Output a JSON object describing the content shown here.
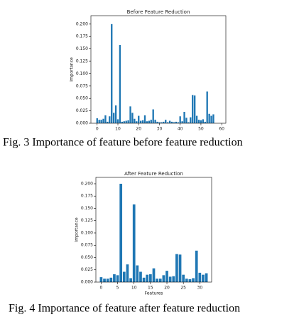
{
  "chart_data": [
    {
      "type": "bar",
      "title": "Before Feature Reduction",
      "ylabel": "Importance",
      "caption": "Fig. 3 Importance of feature before feature reduction",
      "color": "#1f77b4",
      "x": [
        0,
        1,
        2,
        3,
        4,
        5,
        6,
        7,
        8,
        9,
        10,
        11,
        12,
        13,
        14,
        15,
        16,
        17,
        18,
        19,
        20,
        21,
        22,
        23,
        24,
        25,
        26,
        27,
        28,
        29,
        30,
        31,
        32,
        33,
        34,
        35,
        36,
        37,
        38,
        39,
        40,
        41,
        42,
        43,
        44,
        45,
        46,
        47,
        48,
        49,
        50,
        51,
        52,
        53,
        54,
        55,
        56
      ],
      "values": [
        0.01,
        0.007,
        0.007,
        0.009,
        0.016,
        0.003,
        0.014,
        0.2,
        0.021,
        0.036,
        0.008,
        0.158,
        0.003,
        0.004,
        0.005,
        0.006,
        0.034,
        0.021,
        0.009,
        0.004,
        0.015,
        0.005,
        0.006,
        0.016,
        0.004,
        0.005,
        0.007,
        0.028,
        0.007,
        0.003,
        0.002,
        0.002,
        0.003,
        0.007,
        0.002,
        0.005,
        0.003,
        0.002,
        0.003,
        0.002,
        0.014,
        0.004,
        0.023,
        0.011,
        0.002,
        0.012,
        0.057,
        0.056,
        0.015,
        0.007,
        0.006,
        0.008,
        0.003,
        0.064,
        0.019,
        0.015,
        0.018
      ],
      "xlim": [
        -3,
        62
      ],
      "xticks": [
        0,
        10,
        20,
        30,
        40,
        50,
        60
      ],
      "ylim": [
        0,
        0.217
      ],
      "yticks": [
        {
          "value": 0,
          "label": "0.000"
        },
        {
          "value": 0.025,
          "label": "0.025"
        },
        {
          "value": 0.05,
          "label": "0.050"
        },
        {
          "value": 0.075,
          "label": "0.075"
        },
        {
          "value": 0.1,
          "label": "0.100"
        },
        {
          "value": 0.125,
          "label": "0.125"
        },
        {
          "value": 0.15,
          "label": "0.150"
        },
        {
          "value": 0.175,
          "label": "0.175"
        },
        {
          "value": 0.2,
          "label": "0.200"
        }
      ]
    },
    {
      "type": "bar",
      "title": "After Feature Reduction",
      "xlabel": "Features",
      "ylabel": "Importance",
      "caption": "Fig. 4 Importance of feature after feature reduction",
      "color": "#1f77b4",
      "x": [
        0,
        1,
        2,
        3,
        4,
        5,
        6,
        7,
        8,
        9,
        10,
        11,
        12,
        13,
        14,
        15,
        16,
        17,
        18,
        19,
        20,
        21,
        22,
        23,
        24,
        25,
        26,
        27,
        28,
        29,
        30,
        31,
        32
      ],
      "values": [
        0.01,
        0.007,
        0.007,
        0.009,
        0.016,
        0.014,
        0.2,
        0.021,
        0.036,
        0.008,
        0.158,
        0.034,
        0.021,
        0.009,
        0.015,
        0.016,
        0.028,
        0.007,
        0.007,
        0.014,
        0.023,
        0.011,
        0.012,
        0.057,
        0.056,
        0.015,
        0.007,
        0.006,
        0.008,
        0.064,
        0.019,
        0.015,
        0.018
      ],
      "xlim": [
        -1.6,
        33.6
      ],
      "xticks": [
        0,
        5,
        10,
        15,
        20,
        25,
        30
      ],
      "ylim": [
        0,
        0.213
      ],
      "yticks": [
        {
          "value": 0,
          "label": "0.000"
        },
        {
          "value": 0.025,
          "label": "0.025"
        },
        {
          "value": 0.05,
          "label": "0.050"
        },
        {
          "value": 0.075,
          "label": "0.075"
        },
        {
          "value": 0.1,
          "label": "0.100"
        },
        {
          "value": 0.125,
          "label": "0.125"
        },
        {
          "value": 0.15,
          "label": "0.150"
        },
        {
          "value": 0.175,
          "label": "0.175"
        },
        {
          "value": 0.2,
          "label": "0.200"
        }
      ]
    }
  ]
}
